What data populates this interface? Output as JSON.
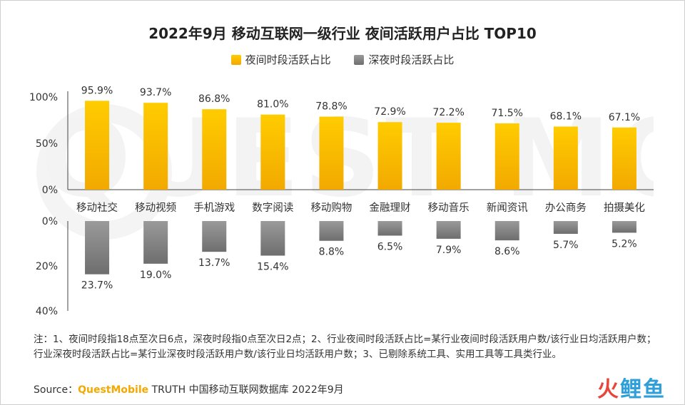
{
  "title": "2022年9月 移动互联网一级行业 夜间活跃用户占比 TOP10",
  "note": "注：1、夜间时段指18点至次日6点，深夜时段指0点至次日2点；2、行业夜间时段活跃占比=某行业夜间时段活跃用户数/该行业日均活跃用户数；行业深夜时段活跃占比=某行业深夜时段活跃用户数/该行业日均活跃用户数；3、已剔除系统工具、实用工具等工具类行业。",
  "source": {
    "label": "Source：",
    "brand": "QuestMobile",
    "rest": " TRUTH 中国移动互联网数据库 2022年9月"
  },
  "watermark": {
    "background": "QUEST MOBILE",
    "logo_a": "火",
    "logo_b": "鲤鱼"
  },
  "colors": {
    "gold_top": "#ffcc00",
    "gold_bottom": "#f2a900",
    "gray_top": "#9a9a9a",
    "gray_bottom": "#6e6e6e"
  },
  "chart_data": {
    "type": "bar",
    "title": "2022年9月 移动互联网一级行业 夜间活跃用户占比 TOP10",
    "categories": [
      "移动社交",
      "移动视频",
      "手机游戏",
      "数字阅读",
      "移动购物",
      "金融理财",
      "移动音乐",
      "新闻资讯",
      "办公商务",
      "拍摄美化"
    ],
    "series": [
      {
        "name": "夜间时段活跃占比",
        "values": [
          95.9,
          93.7,
          86.8,
          81.0,
          78.8,
          72.9,
          72.2,
          71.5,
          68.1,
          67.1
        ],
        "labels": [
          "95.9%",
          "93.7%",
          "86.8%",
          "81.0%",
          "78.8%",
          "72.9%",
          "72.2%",
          "71.5%",
          "68.1%",
          "67.1%"
        ],
        "color": "#f5b800"
      },
      {
        "name": "深夜时段活跃占比",
        "values": [
          23.7,
          19.0,
          13.7,
          15.4,
          8.8,
          6.5,
          7.9,
          8.6,
          5.7,
          5.2
        ],
        "labels": [
          "23.7%",
          "19.0%",
          "13.7%",
          "15.4%",
          "8.8%",
          "6.5%",
          "7.9%",
          "8.6%",
          "5.7%",
          "5.2%"
        ],
        "color": "#888888"
      }
    ],
    "upper_axis": {
      "ylim": [
        0,
        100
      ],
      "ticks": [
        "0%",
        "50%",
        "100%"
      ]
    },
    "lower_axis": {
      "ylim": [
        0,
        40
      ],
      "ticks": [
        "0%",
        "20%",
        "40%"
      ],
      "direction": "downward"
    },
    "legend_position": "top-center",
    "grid": false
  }
}
